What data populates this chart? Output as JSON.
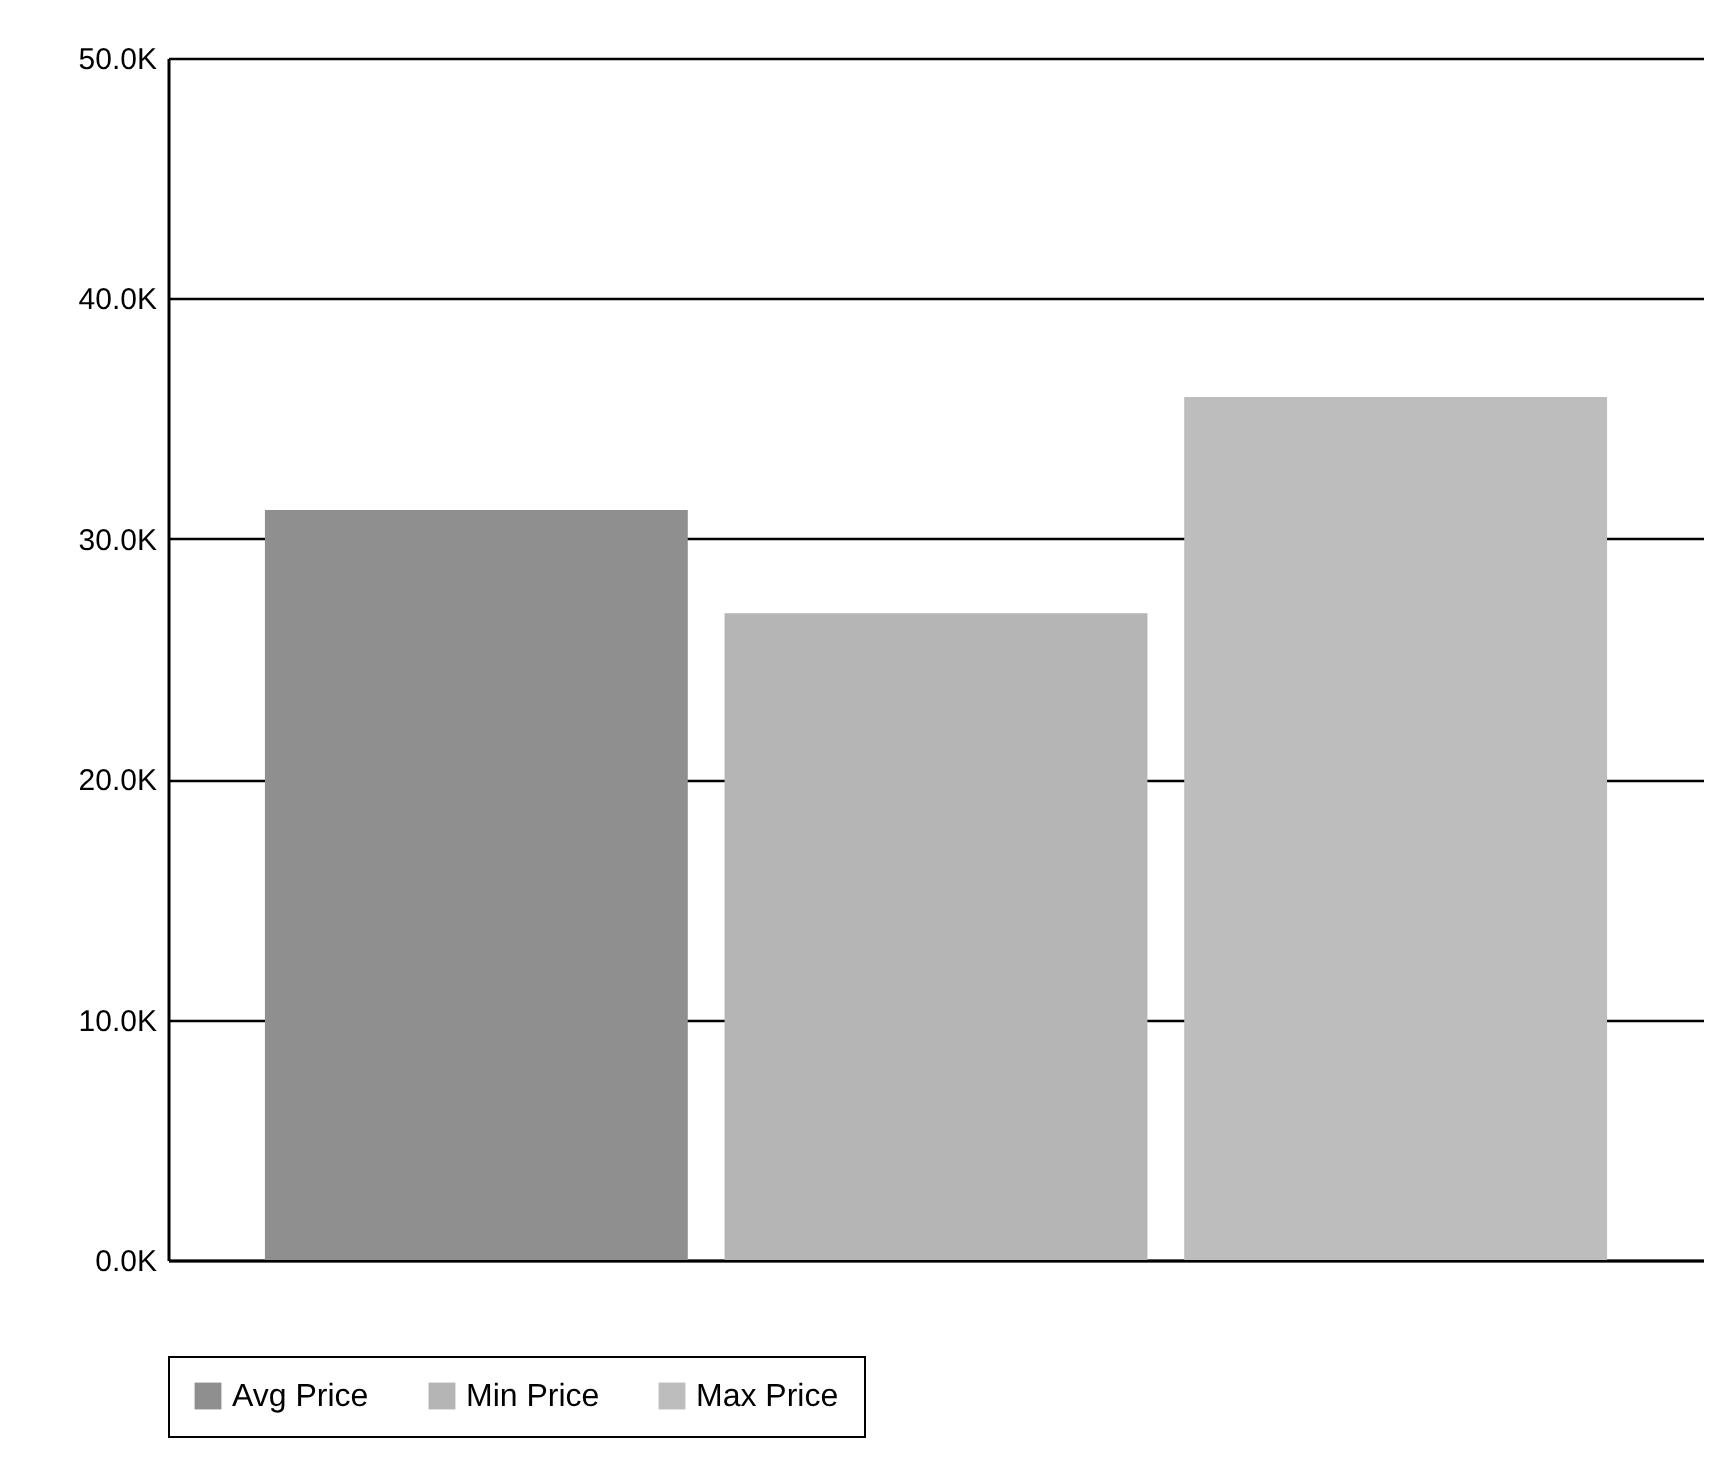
{
  "chart_data": {
    "type": "bar",
    "categories": [
      null
    ],
    "series": [
      {
        "name": "Avg Price",
        "color": "#8f8f8f",
        "values": [
          31200
        ]
      },
      {
        "name": "Min Price",
        "color": "#b5b5b5",
        "values": [
          26900
        ]
      },
      {
        "name": "Max Price",
        "color": "#bdbdbd",
        "values": [
          35900
        ]
      }
    ],
    "ylim": [
      0,
      50000
    ],
    "yticks": [
      {
        "value": 0,
        "label": "0.0K"
      },
      {
        "value": 10000,
        "label": "10.0K"
      },
      {
        "value": 20000,
        "label": "20.0K"
      },
      {
        "value": 30000,
        "label": "30.0K"
      },
      {
        "value": 40000,
        "label": "40.0K"
      },
      {
        "value": 50000,
        "label": "50.0K"
      }
    ],
    "grid": "y",
    "legend": "bottom",
    "tick_labels": "y"
  }
}
